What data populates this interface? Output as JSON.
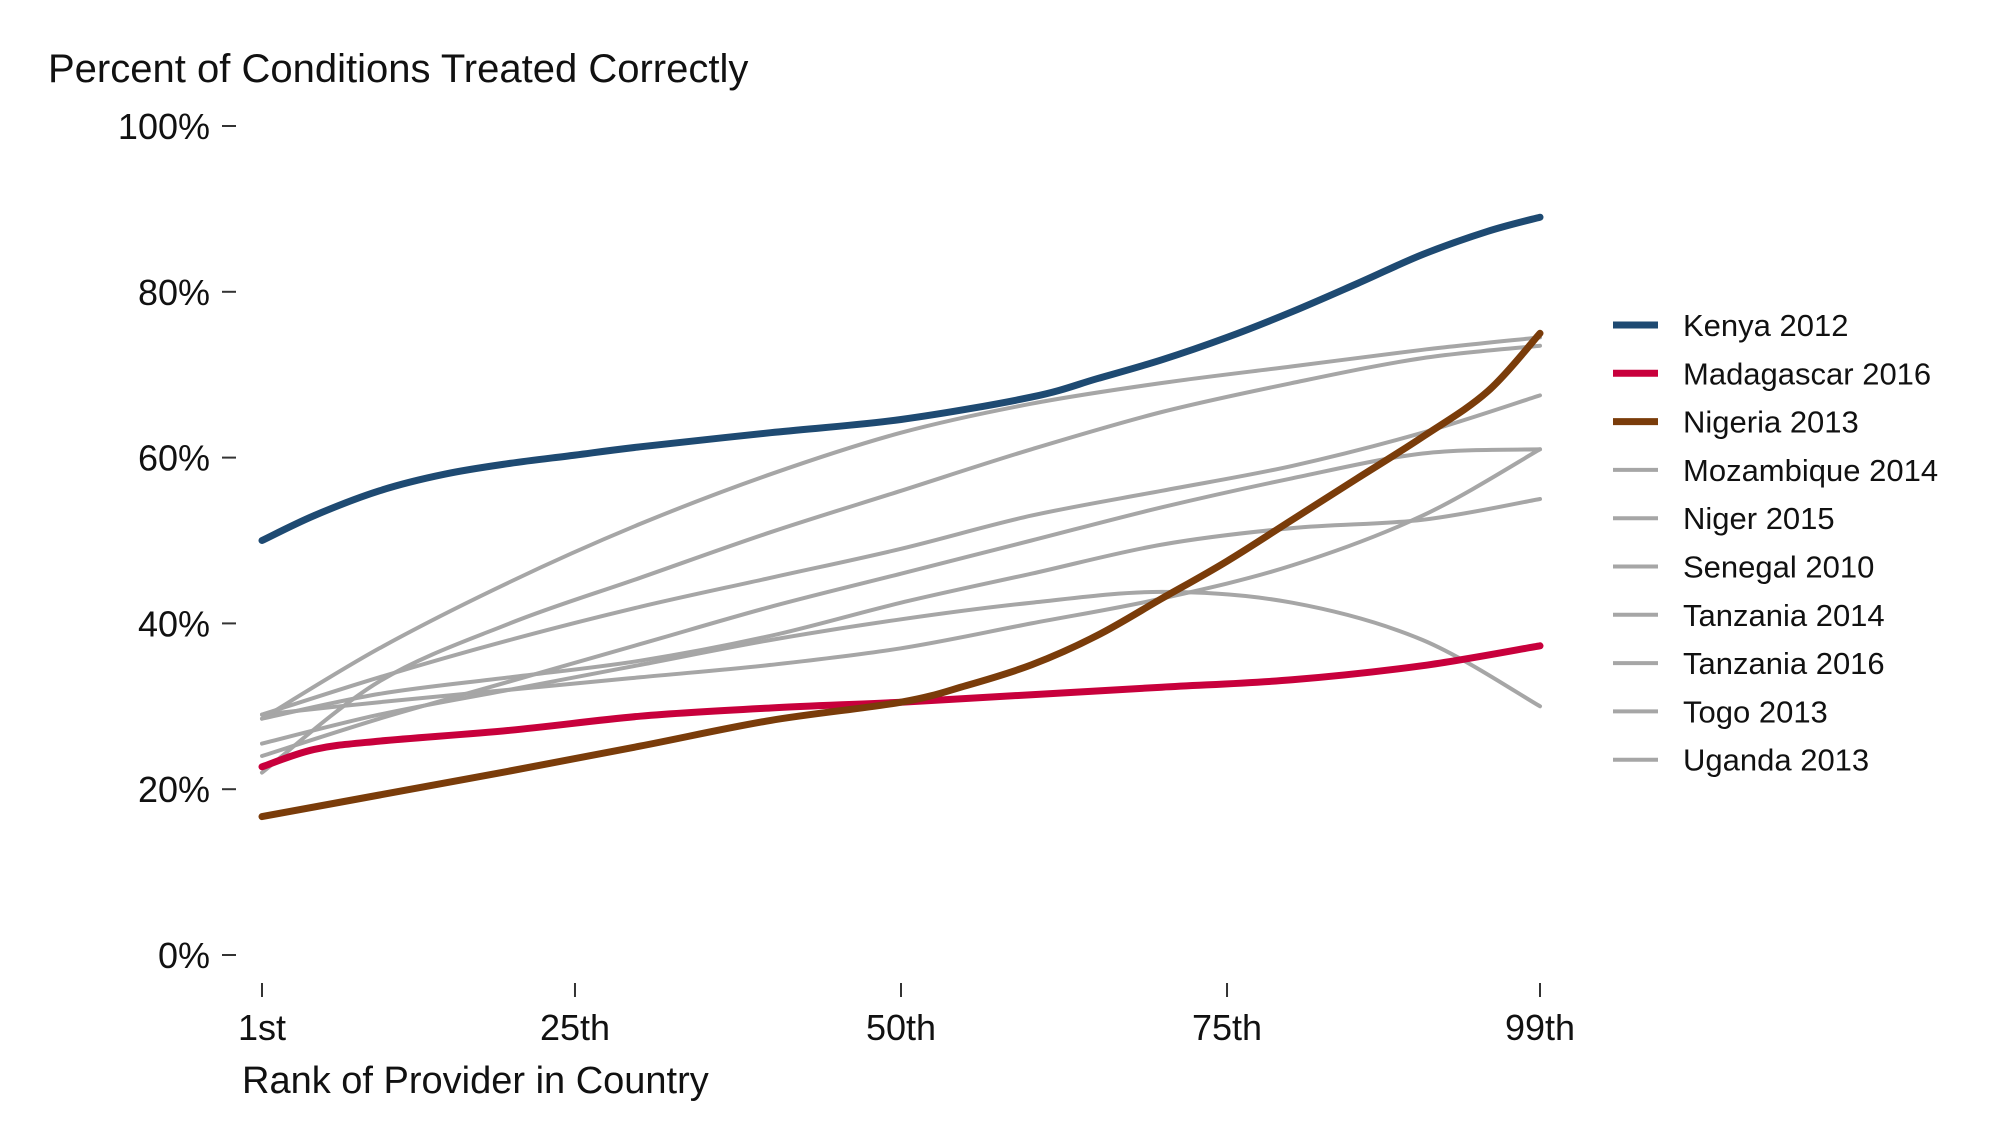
{
  "chart_data": {
    "type": "line",
    "title": "Percent of Conditions Treated Correctly",
    "xlabel": "Rank of Provider in Country",
    "ylabel": "",
    "xlim": [
      1,
      99
    ],
    "ylim": [
      0,
      100
    ],
    "x_ticks": [
      {
        "value": 1,
        "label": "1st"
      },
      {
        "value": 25,
        "label": "25th"
      },
      {
        "value": 50,
        "label": "50th"
      },
      {
        "value": 75,
        "label": "75th"
      },
      {
        "value": 99,
        "label": "99th"
      }
    ],
    "y_ticks": [
      {
        "value": 0,
        "label": "0%"
      },
      {
        "value": 20,
        "label": "20%"
      },
      {
        "value": 40,
        "label": "40%"
      },
      {
        "value": 60,
        "label": "60%"
      },
      {
        "value": 80,
        "label": "80%"
      },
      {
        "value": 100,
        "label": "100%"
      }
    ],
    "grid": false,
    "legend_position": "right",
    "series": [
      {
        "name": "Mozambique 2014",
        "color": "#a6a6a6",
        "highlight": false,
        "x": [
          1,
          10,
          20,
          30,
          40,
          50,
          60,
          70,
          80,
          90,
          99
        ],
        "y": [
          29,
          30.5,
          32,
          33.5,
          35,
          37,
          40,
          43,
          47,
          53,
          61
        ]
      },
      {
        "name": "Niger 2015",
        "color": "#a6a6a6",
        "highlight": false,
        "x": [
          1,
          10,
          20,
          30,
          40,
          50,
          60,
          70,
          80,
          90,
          99
        ],
        "y": [
          25.5,
          29,
          32,
          35,
          38,
          40.5,
          42.5,
          43.8,
          42.5,
          38,
          30
        ]
      },
      {
        "name": "Senegal 2010",
        "color": "#a6a6a6",
        "highlight": false,
        "x": [
          1,
          10,
          20,
          30,
          40,
          50,
          60,
          70,
          80,
          90,
          99
        ],
        "y": [
          28.5,
          31.5,
          33.5,
          35.5,
          38.5,
          42.5,
          46,
          49.5,
          51.5,
          52.5,
          55
        ]
      },
      {
        "name": "Tanzania 2014",
        "color": "#a6a6a6",
        "highlight": false,
        "x": [
          1,
          10,
          20,
          30,
          40,
          50,
          60,
          70,
          80,
          90,
          99
        ],
        "y": [
          29,
          33.5,
          38,
          42,
          45.5,
          49,
          53,
          56,
          59,
          63,
          67.5
        ]
      },
      {
        "name": "Tanzania 2016",
        "color": "#a6a6a6",
        "highlight": false,
        "x": [
          1,
          10,
          20,
          30,
          40,
          50,
          60,
          70,
          80,
          90,
          99
        ],
        "y": [
          28.5,
          37,
          45,
          52,
          58,
          63,
          66.5,
          69,
          71,
          73,
          74.5
        ]
      },
      {
        "name": "Togo 2013",
        "color": "#a6a6a6",
        "highlight": false,
        "x": [
          1,
          10,
          20,
          30,
          40,
          50,
          60,
          70,
          80,
          90,
          99
        ],
        "y": [
          24,
          28.5,
          33,
          37.5,
          42,
          46,
          50,
          54,
          57.5,
          60.5,
          61
        ]
      },
      {
        "name": "Uganda 2013",
        "color": "#a6a6a6",
        "highlight": false,
        "x": [
          1,
          10,
          20,
          30,
          40,
          50,
          60,
          70,
          80,
          90,
          99
        ],
        "y": [
          22,
          33,
          40,
          45.5,
          51,
          56,
          61,
          65.5,
          69,
          72,
          73.5
        ]
      },
      {
        "name": "Kenya 2012",
        "color": "#1e4a72",
        "highlight": true,
        "x": [
          1,
          5,
          10,
          15,
          20,
          25,
          30,
          40,
          50,
          60,
          65,
          70,
          75,
          80,
          85,
          90,
          95,
          99
        ],
        "y": [
          50,
          53,
          56,
          58,
          59.3,
          60.3,
          61.3,
          63,
          64.6,
          67.3,
          69.5,
          71.8,
          74.5,
          77.6,
          81,
          84.5,
          87.3,
          89
        ]
      },
      {
        "name": "Madagascar 2016",
        "color": "#c8003c",
        "highlight": true,
        "x": [
          1,
          5,
          10,
          20,
          30,
          40,
          50,
          60,
          70,
          80,
          90,
          99
        ],
        "y": [
          22.7,
          24.8,
          25.8,
          27.1,
          28.8,
          29.8,
          30.5,
          31.4,
          32.3,
          33.2,
          34.9,
          37.3
        ]
      },
      {
        "name": "Nigeria 2013",
        "color": "#7a3c0a",
        "highlight": true,
        "x": [
          1,
          10,
          20,
          30,
          40,
          50,
          55,
          60,
          65,
          70,
          75,
          80,
          85,
          90,
          95,
          99
        ],
        "y": [
          16.7,
          19.3,
          22.2,
          25.2,
          28.3,
          30.5,
          32.5,
          35,
          38.5,
          43,
          47.5,
          52.5,
          57.5,
          62.5,
          68,
          75
        ]
      }
    ],
    "legend_order": [
      "Kenya 2012",
      "Madagascar 2016",
      "Nigeria 2013",
      "Mozambique 2014",
      "Niger 2015",
      "Senegal 2010",
      "Tanzania 2014",
      "Tanzania 2016",
      "Togo 2013",
      "Uganda 2013"
    ]
  }
}
